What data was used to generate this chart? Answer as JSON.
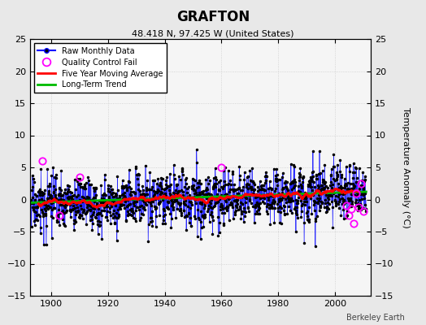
{
  "title": "GRAFTON",
  "subtitle": "48.418 N, 97.425 W (United States)",
  "ylabel": "Temperature Anomaly (°C)",
  "credit": "Berkeley Earth",
  "year_start": 1893,
  "year_end": 2011,
  "ylim": [
    -15,
    25
  ],
  "yticks": [
    -15,
    -10,
    -5,
    0,
    5,
    10,
    15,
    20,
    25
  ],
  "xticks": [
    1900,
    1920,
    1940,
    1960,
    1980,
    2000
  ],
  "bg_color": "#e8e8e8",
  "plot_bg": "#f5f5f5",
  "line_color": "#0000ff",
  "stem_color": "#8888ff",
  "dot_color": "#000000",
  "mavg_color": "#ff0000",
  "trend_color": "#00bb00",
  "qc_color": "#ff00ff",
  "seed": 17
}
